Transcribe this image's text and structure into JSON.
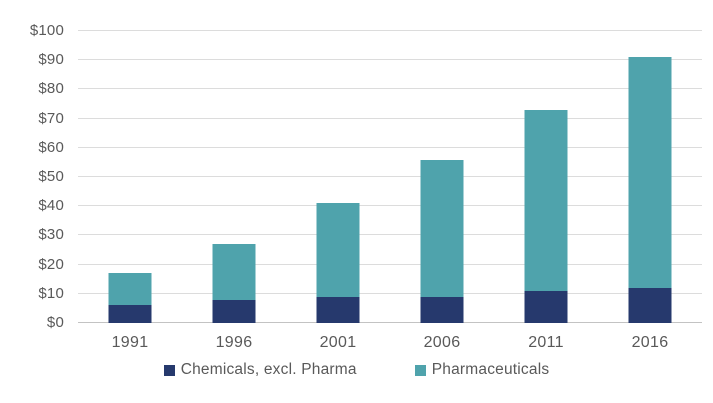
{
  "chart_data": {
    "type": "bar",
    "stacked": true,
    "title": "",
    "xlabel": "",
    "ylabel": "",
    "categories": [
      "1991",
      "1996",
      "2001",
      "2006",
      "2011",
      "2016"
    ],
    "series": [
      {
        "name": "Chemicals, excl. Pharma",
        "color": "#26396d",
        "values": [
          6,
          8,
          9,
          9,
          11,
          12
        ]
      },
      {
        "name": "Pharmaceuticals",
        "color": "#4fa3ac",
        "values": [
          11,
          19,
          32,
          47,
          62,
          79
        ]
      }
    ],
    "stack_totals": [
      17,
      27,
      41,
      56,
      73,
      91
    ],
    "y_axis": {
      "min": 0,
      "max": 100,
      "step": 10,
      "tick_prefix": "$",
      "tick_labels": [
        "$0",
        "$10",
        "$20",
        "$30",
        "$40",
        "$50",
        "$60",
        "$70",
        "$80",
        "$90",
        "$100"
      ]
    },
    "grid": true,
    "legend_position": "bottom",
    "legend_labels": [
      "Chemicals, excl. Pharma",
      "Pharmaceuticals"
    ]
  },
  "colors": {
    "background": "#ffffff",
    "gridline": "#dcdcdc",
    "axis_line": "#c3c3c3",
    "tick_text": "#595959",
    "series_1": "#26396d",
    "series_2": "#4fa3ac"
  }
}
